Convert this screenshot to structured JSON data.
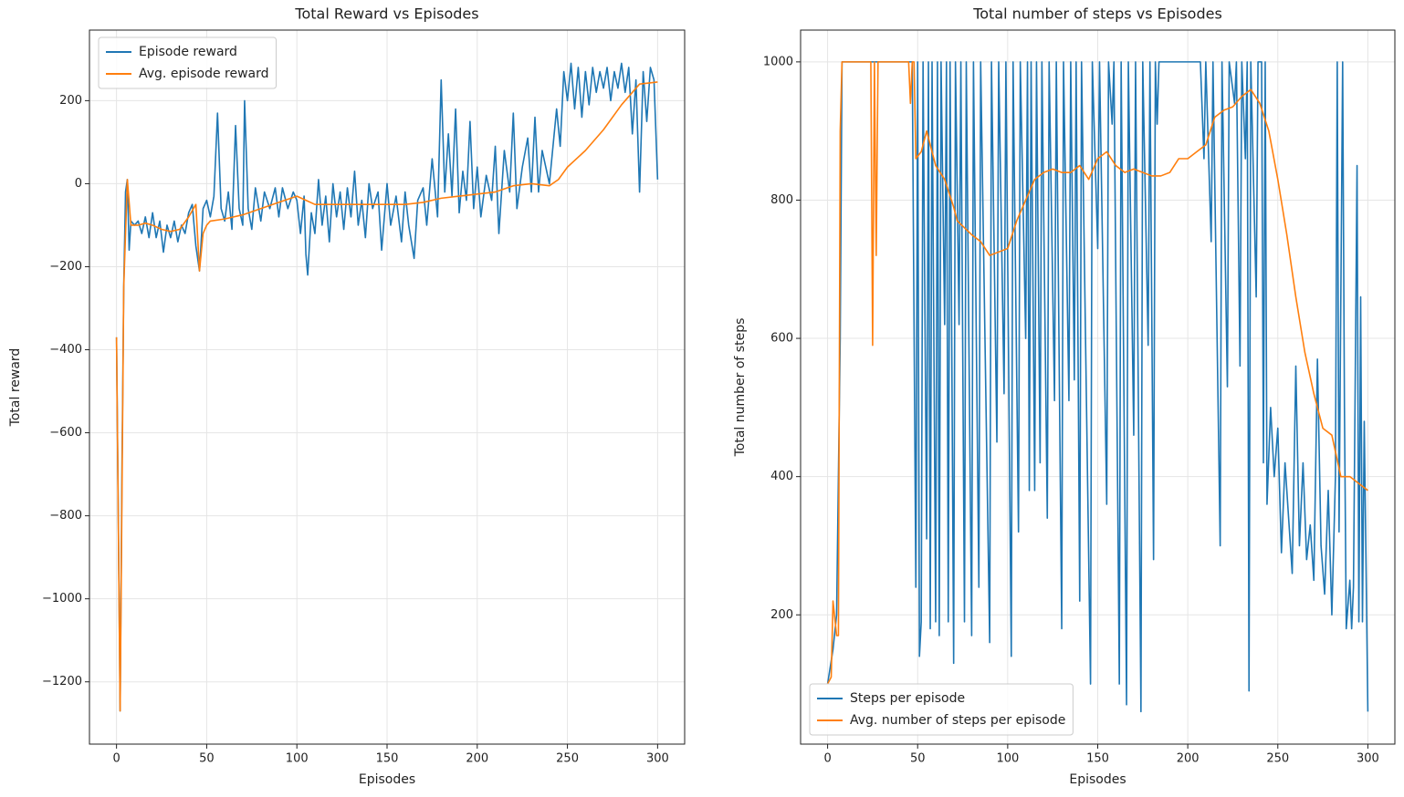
{
  "chart_data": [
    {
      "type": "line",
      "title": "Total Reward vs Episodes",
      "xlabel": "Episodes",
      "ylabel": "Total reward",
      "xlim": [
        -15,
        315
      ],
      "ylim": [
        -1350,
        370
      ],
      "xticks": [
        0,
        50,
        100,
        150,
        200,
        250,
        300
      ],
      "yticks": [
        {
          "value": -1200,
          "label": "−1200"
        },
        {
          "value": -1000,
          "label": "−1000"
        },
        {
          "value": -800,
          "label": "−800"
        },
        {
          "value": -600,
          "label": "−600"
        },
        {
          "value": -400,
          "label": "−400"
        },
        {
          "value": -200,
          "label": "−200"
        },
        0,
        200
      ],
      "grid": true,
      "legend": "upper left",
      "series": [
        {
          "name": "Episode reward",
          "color": "#1f77b4",
          "x": [
            0,
            1,
            2,
            3,
            4,
            5,
            6,
            7,
            8,
            10,
            12,
            14,
            16,
            18,
            20,
            22,
            24,
            26,
            28,
            30,
            32,
            34,
            36,
            38,
            40,
            42,
            44,
            46,
            48,
            50,
            52,
            54,
            56,
            58,
            60,
            62,
            64,
            66,
            68,
            70,
            71,
            73,
            75,
            77,
            80,
            82,
            85,
            88,
            90,
            92,
            95,
            98,
            100,
            102,
            104,
            105,
            106,
            108,
            110,
            112,
            114,
            116,
            118,
            120,
            122,
            124,
            126,
            128,
            130,
            132,
            134,
            136,
            138,
            140,
            142,
            145,
            147,
            150,
            152,
            155,
            158,
            160,
            162,
            165,
            167,
            170,
            172,
            175,
            178,
            180,
            182,
            184,
            186,
            188,
            190,
            192,
            194,
            196,
            198,
            200,
            202,
            205,
            208,
            210,
            212,
            215,
            218,
            220,
            222,
            225,
            228,
            230,
            232,
            234,
            236,
            240,
            244,
            246,
            248,
            250,
            252,
            254,
            256,
            258,
            260,
            262,
            264,
            266,
            268,
            270,
            272,
            274,
            276,
            278,
            280,
            282,
            284,
            286,
            288,
            290,
            292,
            294,
            296,
            298,
            300
          ],
          "values": [
            -370,
            -800,
            -1270,
            -700,
            -250,
            -20,
            10,
            -160,
            -90,
            -100,
            -90,
            -120,
            -80,
            -130,
            -70,
            -130,
            -90,
            -165,
            -100,
            -130,
            -90,
            -140,
            -100,
            -120,
            -70,
            -50,
            -150,
            -210,
            -60,
            -40,
            -80,
            -30,
            170,
            -60,
            -90,
            -20,
            -110,
            140,
            -60,
            -100,
            200,
            -60,
            -110,
            -10,
            -90,
            -20,
            -60,
            -10,
            -80,
            -10,
            -60,
            -20,
            -40,
            -120,
            -30,
            -170,
            -220,
            -70,
            -120,
            10,
            -100,
            -30,
            -140,
            0,
            -80,
            -20,
            -110,
            -10,
            -80,
            30,
            -100,
            -40,
            -130,
            0,
            -60,
            -20,
            -160,
            0,
            -100,
            -30,
            -140,
            -20,
            -100,
            -180,
            -40,
            -10,
            -100,
            60,
            -80,
            250,
            -20,
            120,
            -30,
            180,
            -70,
            30,
            -40,
            150,
            -60,
            40,
            -80,
            20,
            -40,
            90,
            -120,
            80,
            -20,
            170,
            -60,
            40,
            110,
            -20,
            160,
            -20,
            80,
            0,
            180,
            90,
            270,
            200,
            290,
            180,
            280,
            160,
            270,
            190,
            280,
            220,
            270,
            230,
            280,
            200,
            270,
            230,
            290,
            220,
            280,
            120,
            250,
            -20,
            270,
            150,
            280,
            250,
            10
          ]
        },
        {
          "name": "Avg. episode reward",
          "color": "#ff7f0e",
          "x": [
            0,
            2,
            4,
            6,
            8,
            12,
            16,
            20,
            25,
            30,
            35,
            40,
            44,
            46,
            48,
            50,
            52,
            60,
            70,
            80,
            90,
            100,
            105,
            110,
            120,
            130,
            140,
            150,
            160,
            170,
            180,
            190,
            200,
            210,
            220,
            230,
            240,
            245,
            250,
            260,
            270,
            280,
            290,
            300
          ],
          "values": [
            -370,
            -1270,
            -250,
            10,
            -100,
            -100,
            -95,
            -100,
            -110,
            -115,
            -110,
            -80,
            -50,
            -210,
            -120,
            -100,
            -90,
            -85,
            -75,
            -60,
            -45,
            -30,
            -40,
            -50,
            -50,
            -50,
            -50,
            -50,
            -50,
            -45,
            -35,
            -30,
            -25,
            -20,
            -5,
            0,
            -5,
            10,
            40,
            80,
            130,
            190,
            240,
            245
          ]
        }
      ]
    },
    {
      "type": "line",
      "title": "Total number of steps vs Episodes",
      "xlabel": "Episodes",
      "ylabel": "Total number of steps",
      "xlim": [
        -15,
        315
      ],
      "ylim": [
        13,
        1046
      ],
      "xticks": [
        0,
        50,
        100,
        150,
        200,
        250,
        300
      ],
      "yticks": [
        200,
        400,
        600,
        800,
        1000
      ],
      "grid": true,
      "legend": "lower left",
      "series": [
        {
          "name": "Steps per episode",
          "color": "#1f77b4",
          "x": [
            0,
            3,
            5,
            7,
            8,
            47,
            49,
            50,
            51,
            52,
            53,
            55,
            56,
            57,
            58,
            59,
            60,
            61,
            62,
            63,
            65,
            66,
            67,
            68,
            70,
            71,
            73,
            74,
            76,
            77,
            80,
            81,
            84,
            85,
            90,
            91,
            94,
            95,
            98,
            99,
            102,
            103,
            106,
            107,
            110,
            111,
            112,
            113,
            115,
            116,
            118,
            119,
            122,
            123,
            126,
            127,
            130,
            131,
            134,
            135,
            137,
            138,
            140,
            141,
            146,
            147,
            150,
            151,
            155,
            156,
            158,
            159,
            162,
            163,
            166,
            167,
            170,
            171,
            174,
            175,
            178,
            179,
            181,
            182,
            183,
            184,
            207,
            209,
            210,
            213,
            214,
            218,
            219,
            222,
            223,
            226,
            227,
            229,
            230,
            232,
            233,
            234,
            235,
            238,
            239,
            241,
            242,
            243,
            244,
            246,
            248,
            250,
            252,
            254,
            256,
            258,
            260,
            262,
            264,
            266,
            268,
            270,
            272,
            274,
            276,
            278,
            280,
            282,
            283,
            284,
            286,
            287,
            288,
            290,
            291,
            292,
            294,
            295,
            296,
            297,
            298,
            300
          ],
          "values": [
            100,
            150,
            200,
            600,
            1000,
            1000,
            240,
            1000,
            140,
            190,
            1000,
            310,
            1000,
            180,
            1000,
            600,
            190,
            1000,
            170,
            1000,
            620,
            1000,
            190,
            1000,
            130,
            1000,
            620,
            1000,
            190,
            1000,
            170,
            1000,
            240,
            1000,
            160,
            1000,
            450,
            1000,
            520,
            1000,
            140,
            1000,
            320,
            1000,
            600,
            1000,
            380,
            1000,
            380,
            1000,
            420,
            1000,
            340,
            1000,
            510,
            1000,
            180,
            1000,
            510,
            1000,
            540,
            1000,
            220,
            1000,
            100,
            1000,
            730,
            1000,
            360,
            1000,
            910,
            1000,
            100,
            1000,
            70,
            1000,
            460,
            1000,
            60,
            1000,
            590,
            1000,
            280,
            1000,
            910,
            1000,
            1000,
            860,
            1000,
            740,
            1000,
            300,
            1000,
            530,
            1000,
            940,
            1000,
            560,
            1000,
            860,
            1000,
            90,
            1000,
            660,
            1000,
            1000,
            420,
            1000,
            360,
            500,
            400,
            470,
            290,
            420,
            340,
            260,
            560,
            300,
            420,
            280,
            330,
            250,
            570,
            300,
            230,
            380,
            200,
            400,
            1000,
            320,
            1000,
            500,
            180,
            250,
            180,
            240,
            850,
            190,
            660,
            190,
            480,
            60
          ]
        },
        {
          "name": "Avg. number of steps per episode",
          "color": "#ff7f0e",
          "x": [
            0,
            2,
            3,
            5,
            6,
            7,
            8,
            24,
            25,
            26,
            27,
            28,
            45,
            46,
            47,
            48,
            49,
            52,
            55,
            60,
            65,
            70,
            72,
            80,
            85,
            90,
            95,
            100,
            105,
            110,
            115,
            120,
            125,
            130,
            135,
            140,
            145,
            150,
            155,
            160,
            165,
            170,
            175,
            180,
            185,
            190,
            195,
            200,
            205,
            210,
            215,
            220,
            225,
            230,
            235,
            240,
            245,
            250,
            255,
            260,
            265,
            270,
            275,
            280,
            285,
            290,
            295,
            300
          ],
          "values": [
            100,
            110,
            220,
            170,
            170,
            900,
            1000,
            1000,
            590,
            1000,
            720,
            1000,
            1000,
            940,
            1000,
            1000,
            860,
            870,
            900,
            850,
            830,
            790,
            770,
            750,
            740,
            720,
            725,
            730,
            770,
            800,
            830,
            840,
            845,
            840,
            840,
            850,
            830,
            860,
            870,
            850,
            840,
            845,
            840,
            835,
            835,
            840,
            860,
            860,
            870,
            880,
            920,
            930,
            935,
            950,
            960,
            940,
            900,
            830,
            750,
            660,
            580,
            520,
            470,
            460,
            400,
            400,
            390,
            380
          ]
        }
      ]
    }
  ]
}
